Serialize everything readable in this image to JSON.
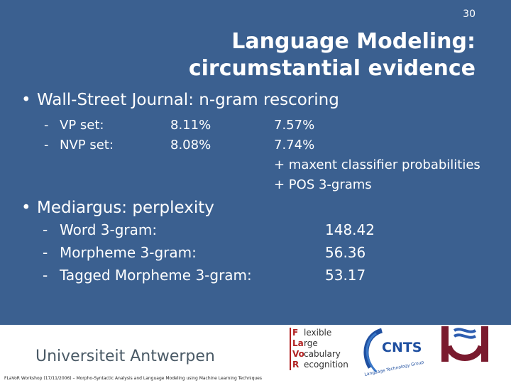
{
  "page_number": "30",
  "title": {
    "line1": "Language Modeling:",
    "line2": "circumstantial evidence"
  },
  "section1": {
    "bullet": "•",
    "heading": "Wall-Street Journal: n-gram rescoring",
    "rows": [
      {
        "dash": "-",
        "label": "VP set:",
        "val1": "8.11%",
        "val2": "7.57%"
      },
      {
        "dash": "-",
        "label": "NVP set:",
        "val1": "8.08%",
        "val2": "7.74%"
      }
    ],
    "notes": [
      "+ maxent classifier probabilities",
      "+ POS 3-grams"
    ]
  },
  "section2": {
    "bullet": "•",
    "heading": "Mediargus: perplexity",
    "rows": [
      {
        "dash": "-",
        "label": "Word 3-gram:",
        "value": "148.42"
      },
      {
        "dash": "-",
        "label": "Morpheme 3-gram:",
        "value": "56.36"
      },
      {
        "dash": "-",
        "label": "Tagged Morpheme 3-gram:",
        "value": "53.17"
      }
    ]
  },
  "footer": {
    "university": "Universiteit Antwerpen",
    "workshop": "FLaVoR Workshop (17/11/2006) – Morpho-Syntactic Analysis and Language Modeling using Machine Learning Techniques",
    "flavor_logo": {
      "rows": [
        {
          "letter": "F",
          "rest": "lexible"
        },
        {
          "letter": "La",
          "rest": "rge"
        },
        {
          "letter": "Vo",
          "rest": "cabulary"
        },
        {
          "letter": "R",
          "rest": "ecognition"
        }
      ]
    },
    "cnts_logo": {
      "name": "CNTS",
      "ring_text": "Language Technology Group"
    }
  },
  "colors": {
    "background": "#3b6090",
    "text": "#ffffff",
    "cnts_blue": "#1f4fa0",
    "ua_maroon": "#7a1a2e"
  }
}
